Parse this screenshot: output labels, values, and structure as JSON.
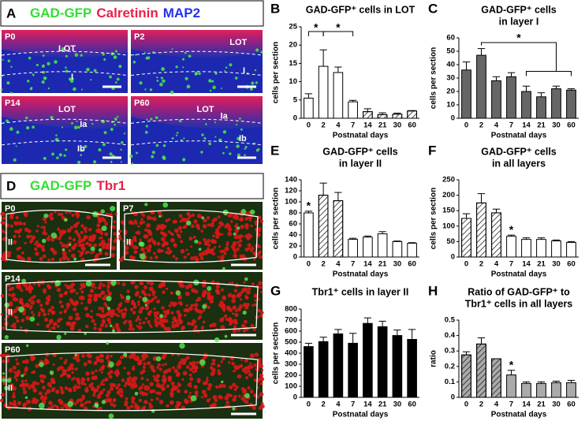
{
  "panel_a": {
    "letter": "A",
    "legend": [
      "GAD-GFP",
      "Calretinin",
      "MAP2"
    ],
    "images": [
      {
        "label": "P0",
        "marks": [
          "LOT",
          "I"
        ]
      },
      {
        "label": "P2",
        "marks": [
          "LOT",
          "I"
        ]
      },
      {
        "label": "P14",
        "marks": [
          "LOT",
          "Ia",
          "Ib"
        ]
      },
      {
        "label": "P60",
        "marks": [
          "LOT",
          "Ia",
          "Ib"
        ]
      }
    ]
  },
  "panel_d": {
    "letter": "D",
    "legend": [
      "GAD-GFP",
      "Tbr1"
    ],
    "images": [
      {
        "label": "P0",
        "marks": [
          "II"
        ]
      },
      {
        "label": "P7",
        "marks": [
          "II"
        ]
      },
      {
        "label": "P14",
        "marks": [
          "II"
        ]
      },
      {
        "label": "P60",
        "marks": [
          "II"
        ]
      }
    ]
  },
  "chart_data": [
    {
      "type": "bar",
      "panel": "B",
      "title": [
        "GAD-GFP⁺ cells in LOT"
      ],
      "ylabel": "cells per section",
      "xlabel": "Postnatal days",
      "categories": [
        "0",
        "2",
        "4",
        "7",
        "14",
        "21",
        "30",
        "60"
      ],
      "values": [
        5.5,
        14.2,
        12.5,
        4.5,
        1.8,
        1.0,
        1.1,
        2.0
      ],
      "errors": [
        1.2,
        4.5,
        1.5,
        0.4,
        0.8,
        0.5,
        0.3,
        0.1
      ],
      "colors": [
        "#ffffff",
        "#ffffff",
        "#ffffff",
        "#ffffff",
        "#ffffff",
        "#ffffff",
        "#ffffff",
        "#ffffff"
      ],
      "hatched": [
        false,
        false,
        false,
        false,
        true,
        true,
        true,
        true
      ],
      "ylim": [
        0,
        25
      ],
      "yticks": [
        0,
        5,
        10,
        15,
        20,
        25
      ],
      "annotations": [
        "*",
        "*"
      ]
    },
    {
      "type": "bar",
      "panel": "C",
      "title": [
        "GAD-GFP⁺ cells",
        "in layer I"
      ],
      "ylabel": "cells per section",
      "xlabel": "Postnatal days",
      "categories": [
        "0",
        "2",
        "4",
        "7",
        "14",
        "21",
        "30",
        "60"
      ],
      "values": [
        36,
        47,
        28,
        31,
        20,
        16,
        22,
        21
      ],
      "errors": [
        6,
        5,
        3,
        3,
        4,
        3,
        2,
        1
      ],
      "colors": [
        "#666666",
        "#666666",
        "#666666",
        "#666666",
        "#666666",
        "#666666",
        "#666666",
        "#666666"
      ],
      "hatched": [
        false,
        false,
        false,
        false,
        false,
        false,
        false,
        false
      ],
      "ylim": [
        0,
        60
      ],
      "yticks": [
        0,
        10,
        20,
        30,
        40,
        50,
        60
      ],
      "annotations": [
        "*"
      ]
    },
    {
      "type": "bar",
      "panel": "E",
      "title": [
        "GAD-GFP⁺ cells",
        "in layer II"
      ],
      "ylabel": "cells per section",
      "xlabel": "Postnatal days",
      "categories": [
        "0",
        "2",
        "4",
        "7",
        "14",
        "21",
        "30",
        "60"
      ],
      "values": [
        80,
        112,
        102,
        32,
        36,
        42,
        28,
        25
      ],
      "errors": [
        3,
        22,
        15,
        2,
        2,
        4,
        1,
        1
      ],
      "colors": [
        "#ffffff",
        "#ffffff",
        "#ffffff",
        "#ffffff",
        "#ffffff",
        "#ffffff",
        "#ffffff",
        "#ffffff"
      ],
      "hatched": [
        false,
        true,
        true,
        false,
        false,
        false,
        false,
        false
      ],
      "ylim": [
        0,
        140
      ],
      "yticks": [
        0,
        20,
        40,
        60,
        80,
        100,
        120,
        140
      ],
      "annotations": [
        "*"
      ]
    },
    {
      "type": "bar",
      "panel": "F",
      "title": [
        "GAD-GFP⁺ cells",
        "in all layers"
      ],
      "ylabel": "cells per section",
      "xlabel": "Postnatal days",
      "categories": [
        "0",
        "2",
        "4",
        "7",
        "14",
        "21",
        "30",
        "60"
      ],
      "values": [
        125,
        175,
        143,
        67,
        57,
        57,
        52,
        47
      ],
      "errors": [
        15,
        30,
        12,
        4,
        5,
        5,
        3,
        3
      ],
      "colors": [
        "#ffffff",
        "#ffffff",
        "#ffffff",
        "#ffffff",
        "#ffffff",
        "#ffffff",
        "#ffffff",
        "#ffffff"
      ],
      "hatched": [
        true,
        true,
        true,
        false,
        false,
        false,
        false,
        false
      ],
      "ylim": [
        0,
        250
      ],
      "yticks": [
        0,
        50,
        100,
        150,
        200,
        250
      ],
      "annotations": [
        "*"
      ]
    },
    {
      "type": "bar",
      "panel": "G",
      "title": [
        "Tbr1⁺ cells in layer II"
      ],
      "ylabel": "cells per section",
      "xlabel": "Postnatal days",
      "categories": [
        "0",
        "2",
        "4",
        "7",
        "14",
        "21",
        "30",
        "60"
      ],
      "values": [
        460,
        505,
        575,
        490,
        670,
        640,
        560,
        525
      ],
      "errors": [
        30,
        40,
        40,
        90,
        50,
        50,
        50,
        90
      ],
      "colors": [
        "#000000",
        "#000000",
        "#000000",
        "#000000",
        "#000000",
        "#000000",
        "#000000",
        "#000000"
      ],
      "hatched": [
        false,
        false,
        false,
        false,
        false,
        false,
        false,
        false
      ],
      "ylim": [
        0,
        800
      ],
      "yticks": [
        0,
        100,
        200,
        300,
        400,
        500,
        600,
        700,
        800
      ],
      "annotations": []
    },
    {
      "type": "bar",
      "panel": "H",
      "title": [
        "Ratio of GAD-GFP⁺ to",
        "Tbr1⁺ cells in all layers"
      ],
      "ylabel": "ratio",
      "xlabel": "Postnatal days",
      "categories": [
        "0",
        "2",
        "4",
        "7",
        "14",
        "21",
        "30",
        "60"
      ],
      "values": [
        0.275,
        0.345,
        0.25,
        0.145,
        0.09,
        0.09,
        0.095,
        0.095
      ],
      "errors": [
        0.02,
        0.04,
        0,
        0.03,
        0.01,
        0.01,
        0.01,
        0.015
      ],
      "colors": [
        "#aaaaaa",
        "#aaaaaa",
        "#aaaaaa",
        "#aaaaaa",
        "#aaaaaa",
        "#aaaaaa",
        "#aaaaaa",
        "#aaaaaa"
      ],
      "hatched": [
        true,
        true,
        true,
        false,
        false,
        false,
        false,
        false
      ],
      "ylim": [
        0,
        0.5
      ],
      "yticks": [
        0,
        0.1,
        0.2,
        0.3,
        0.4,
        0.5
      ],
      "annotations": [
        "*"
      ]
    }
  ]
}
